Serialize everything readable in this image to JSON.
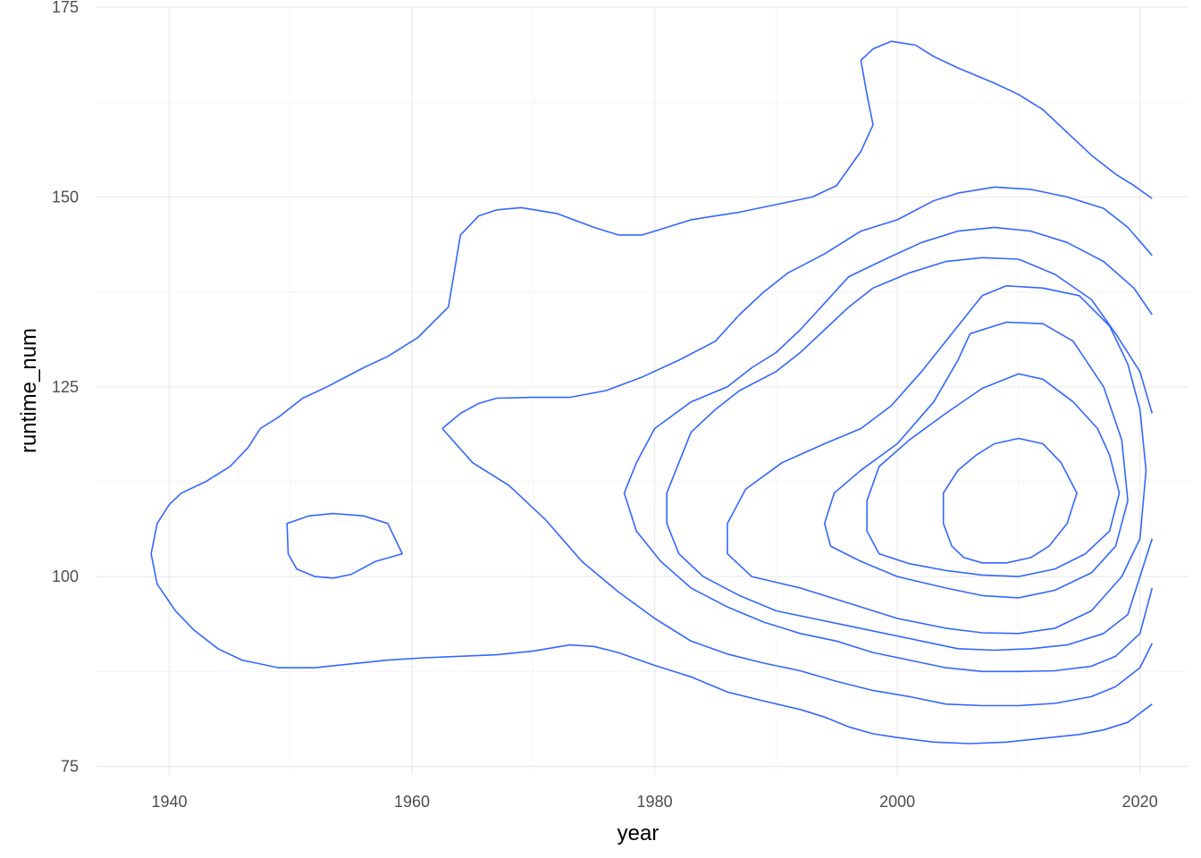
{
  "chart_data": {
    "type": "contour",
    "xlabel": "year",
    "ylabel": "runtime_num",
    "xlim": [
      1934,
      2024
    ],
    "ylim": [
      74,
      175
    ],
    "x_ticks": [
      1940,
      1960,
      1980,
      2000,
      2020
    ],
    "x_tick_labels": [
      "1940",
      "1960",
      "1980",
      "2000",
      "2020"
    ],
    "y_ticks": [
      75,
      100,
      125,
      150,
      175
    ],
    "y_tick_labels": [
      "75",
      "100",
      "125",
      "150",
      "175"
    ],
    "grid": true,
    "legend": "none",
    "line_color": "#3366ff",
    "series": [
      {
        "level": 1,
        "points": [
          [
            1938.5,
            103
          ],
          [
            1939,
            107
          ],
          [
            1940,
            109.5
          ],
          [
            1941,
            111
          ],
          [
            1943,
            112.5
          ],
          [
            1945,
            114.5
          ],
          [
            1946.5,
            117
          ],
          [
            1947.5,
            119.5
          ],
          [
            1949,
            121
          ],
          [
            1951,
            123.5
          ],
          [
            1953,
            125
          ],
          [
            1956,
            127.5
          ],
          [
            1958,
            129
          ],
          [
            1960.5,
            131.5
          ],
          [
            1963,
            135.5
          ],
          [
            1964,
            145
          ],
          [
            1965.5,
            147.5
          ],
          [
            1967,
            148.3
          ],
          [
            1969,
            148.6
          ],
          [
            1972,
            147.8
          ],
          [
            1975,
            146
          ],
          [
            1977,
            145
          ],
          [
            1979,
            145
          ],
          [
            1981,
            146
          ],
          [
            1983,
            147
          ],
          [
            1985,
            147.5
          ],
          [
            1987,
            148
          ],
          [
            1990,
            149
          ],
          [
            1993,
            150
          ],
          [
            1995,
            151.5
          ],
          [
            1997,
            156
          ],
          [
            1998,
            159.5
          ],
          [
            1997.5,
            163.5
          ],
          [
            1997,
            168
          ],
          [
            1998,
            169.5
          ],
          [
            1999.5,
            170.5
          ],
          [
            2001.5,
            170
          ],
          [
            2003,
            168.5
          ],
          [
            2005,
            167
          ],
          [
            2008,
            165
          ],
          [
            2010,
            163.5
          ],
          [
            2012,
            161.5
          ],
          [
            2014,
            158.5
          ],
          [
            2016,
            155.5
          ],
          [
            2018,
            153
          ],
          [
            2019.5,
            151.5
          ],
          [
            2021,
            149.8
          ]
        ]
      },
      {
        "level": 1,
        "points": [
          [
            1938.5,
            103
          ],
          [
            1939,
            99
          ],
          [
            1940.5,
            95.5
          ],
          [
            1942,
            93
          ],
          [
            1944,
            90.5
          ],
          [
            1946,
            89
          ],
          [
            1949,
            88
          ],
          [
            1952,
            88
          ],
          [
            1955,
            88.5
          ],
          [
            1958,
            89
          ],
          [
            1961,
            89.3
          ],
          [
            1964,
            89.5
          ],
          [
            1967,
            89.7
          ],
          [
            1970,
            90.2
          ],
          [
            1973,
            91
          ],
          [
            1975,
            90.8
          ],
          [
            1977,
            90
          ],
          [
            1980,
            88.3
          ],
          [
            1983,
            86.8
          ],
          [
            1986,
            84.8
          ],
          [
            1989,
            83.6
          ],
          [
            1992,
            82.5
          ],
          [
            1994,
            81.5
          ],
          [
            1996,
            80.2
          ],
          [
            1998,
            79.3
          ],
          [
            2000,
            78.8
          ],
          [
            2003,
            78.2
          ],
          [
            2006,
            78
          ],
          [
            2009,
            78.2
          ],
          [
            2012,
            78.7
          ],
          [
            2015,
            79.2
          ],
          [
            2017,
            79.8
          ],
          [
            2019,
            80.8
          ],
          [
            2021,
            83.2
          ]
        ]
      },
      {
        "level": 2,
        "points": [
          [
            1949.8,
            103
          ],
          [
            1949.7,
            107
          ],
          [
            1951.5,
            108
          ],
          [
            1953.5,
            108.3
          ],
          [
            1956,
            108
          ],
          [
            1958,
            107
          ],
          [
            1959.2,
            103
          ],
          [
            1957,
            102
          ],
          [
            1955,
            100.3
          ],
          [
            1953.5,
            99.8
          ],
          [
            1952,
            100
          ],
          [
            1950.5,
            101
          ],
          [
            1949.8,
            103
          ]
        ]
      },
      {
        "level": 2,
        "points": [
          [
            1962.5,
            119.5
          ],
          [
            1964,
            121.5
          ],
          [
            1965.5,
            122.8
          ],
          [
            1967,
            123.5
          ],
          [
            1970,
            123.6
          ],
          [
            1973,
            123.6
          ],
          [
            1976,
            124.5
          ],
          [
            1979,
            126.3
          ],
          [
            1982,
            128.5
          ],
          [
            1985,
            131
          ],
          [
            1987,
            134.5
          ],
          [
            1989,
            137.5
          ],
          [
            1991,
            140
          ],
          [
            1994,
            142.5
          ],
          [
            1997,
            145.5
          ],
          [
            2000,
            147
          ],
          [
            2003,
            149.5
          ],
          [
            2005,
            150.5
          ],
          [
            2008,
            151.3
          ],
          [
            2011,
            151
          ],
          [
            2014,
            150
          ],
          [
            2017,
            148.5
          ],
          [
            2019,
            146
          ],
          [
            2021,
            142.3
          ]
        ]
      },
      {
        "level": 2,
        "points": [
          [
            1962.5,
            119.5
          ],
          [
            1965,
            115
          ],
          [
            1968,
            112
          ],
          [
            1971,
            107.5
          ],
          [
            1974,
            102
          ],
          [
            1977,
            98
          ],
          [
            1980,
            94.5
          ],
          [
            1983,
            91.5
          ],
          [
            1986,
            89.8
          ],
          [
            1989,
            88.6
          ],
          [
            1992,
            87.6
          ],
          [
            1995,
            86.2
          ],
          [
            1998,
            85
          ],
          [
            2001,
            84.2
          ],
          [
            2004,
            83.2
          ],
          [
            2007,
            83
          ],
          [
            2010,
            83
          ],
          [
            2013,
            83.3
          ],
          [
            2016,
            84.2
          ],
          [
            2018,
            85.5
          ],
          [
            2020,
            88
          ],
          [
            2021,
            91.2
          ]
        ]
      },
      {
        "level": 3,
        "points": [
          [
            2021,
            134.5
          ],
          [
            2019.5,
            138
          ],
          [
            2017,
            141.5
          ],
          [
            2014,
            144
          ],
          [
            2011,
            145.5
          ],
          [
            2008,
            146
          ],
          [
            2005,
            145.5
          ],
          [
            2002,
            144
          ],
          [
            1999,
            141.8
          ],
          [
            1996,
            139.5
          ],
          [
            1994,
            136
          ],
          [
            1992,
            132.5
          ],
          [
            1990,
            129.5
          ],
          [
            1988,
            127.5
          ],
          [
            1986,
            125
          ],
          [
            1983,
            123
          ],
          [
            1980,
            119.5
          ],
          [
            1978.5,
            115
          ],
          [
            1977.5,
            111
          ],
          [
            1978.5,
            106
          ],
          [
            1980.5,
            102
          ],
          [
            1983,
            98.5
          ],
          [
            1986,
            96
          ],
          [
            1989,
            94
          ],
          [
            1992,
            92.5
          ],
          [
            1995,
            91.5
          ],
          [
            1998,
            90
          ],
          [
            2001,
            89
          ],
          [
            2004,
            88
          ],
          [
            2007,
            87.5
          ],
          [
            2010,
            87.5
          ],
          [
            2013,
            87.6
          ],
          [
            2016,
            88.2
          ],
          [
            2018,
            89.5
          ],
          [
            2020,
            92.5
          ],
          [
            2021,
            98.5
          ]
        ]
      },
      {
        "level": 4,
        "points": [
          [
            2021,
            121.5
          ],
          [
            2020,
            127
          ],
          [
            2018,
            132
          ],
          [
            2016,
            136.5
          ],
          [
            2013,
            139.8
          ],
          [
            2010,
            141.8
          ],
          [
            2007,
            142
          ],
          [
            2004,
            141.5
          ],
          [
            2001,
            140
          ],
          [
            1998,
            138
          ],
          [
            1996,
            135.5
          ],
          [
            1994,
            132.5
          ],
          [
            1992,
            129.5
          ],
          [
            1990,
            127
          ],
          [
            1987,
            124.5
          ],
          [
            1985,
            122
          ],
          [
            1983,
            119
          ],
          [
            1982,
            115
          ],
          [
            1981,
            111
          ],
          [
            1981,
            107
          ],
          [
            1982,
            103
          ],
          [
            1984,
            100
          ],
          [
            1987,
            97.5
          ],
          [
            1990,
            95.5
          ],
          [
            1993,
            94.5
          ],
          [
            1996,
            93.5
          ],
          [
            1999,
            92.5
          ],
          [
            2002,
            91.5
          ],
          [
            2005,
            90.5
          ],
          [
            2008,
            90.3
          ],
          [
            2011,
            90.5
          ],
          [
            2014,
            91
          ],
          [
            2017,
            92.5
          ],
          [
            2019,
            95
          ],
          [
            2021,
            105
          ]
        ]
      },
      {
        "level": 5,
        "points": [
          [
            2012,
            138
          ],
          [
            2015,
            137
          ],
          [
            2017.5,
            133
          ],
          [
            2019,
            128
          ],
          [
            2020,
            122
          ],
          [
            2020.5,
            114
          ],
          [
            2020,
            105
          ],
          [
            2018.5,
            100
          ],
          [
            2016,
            95.5
          ],
          [
            2013,
            93.2
          ],
          [
            2010,
            92.5
          ],
          [
            2007,
            92.6
          ],
          [
            2004,
            93.2
          ],
          [
            2000,
            94.5
          ],
          [
            1996,
            96.5
          ],
          [
            1992,
            98.5
          ],
          [
            1988,
            100
          ],
          [
            1986,
            103
          ],
          [
            1986,
            107
          ],
          [
            1987.5,
            111.5
          ],
          [
            1990.5,
            115
          ],
          [
            1994,
            117.5
          ],
          [
            1997,
            119.5
          ],
          [
            1999.5,
            122.5
          ],
          [
            2002,
            127
          ],
          [
            2004.5,
            132
          ],
          [
            2007,
            137
          ],
          [
            2009,
            138.3
          ],
          [
            2012,
            138
          ]
        ]
      },
      {
        "level": 6,
        "points": [
          [
            2006,
            132
          ],
          [
            2009,
            133.5
          ],
          [
            2012,
            133.3
          ],
          [
            2014.5,
            131
          ],
          [
            2017,
            125
          ],
          [
            2018.5,
            118
          ],
          [
            2019,
            110
          ],
          [
            2018,
            104
          ],
          [
            2016,
            100.5
          ],
          [
            2013,
            98.2
          ],
          [
            2010,
            97.2
          ],
          [
            2007,
            97.5
          ],
          [
            2004,
            98.5
          ],
          [
            2000,
            100
          ],
          [
            1997,
            102
          ],
          [
            1994.5,
            104
          ],
          [
            1994,
            107
          ],
          [
            1994.8,
            111
          ],
          [
            1997,
            114
          ],
          [
            2000,
            117.5
          ],
          [
            2003,
            123
          ],
          [
            2005,
            128.5
          ],
          [
            2006,
            132
          ]
        ]
      },
      {
        "level": 7,
        "points": [
          [
            2010,
            126.7
          ],
          [
            2012,
            126
          ],
          [
            2014.5,
            123
          ],
          [
            2016.5,
            119.5
          ],
          [
            2017.5,
            116
          ],
          [
            2018.3,
            111
          ],
          [
            2017.5,
            106
          ],
          [
            2015.5,
            103
          ],
          [
            2013,
            101
          ],
          [
            2010,
            100
          ],
          [
            2007,
            100.2
          ],
          [
            2004,
            100.8
          ],
          [
            2001,
            101.7
          ],
          [
            1998.5,
            103
          ],
          [
            1997.5,
            106
          ],
          [
            1997.5,
            110
          ],
          [
            1998.5,
            114.5
          ],
          [
            2001,
            118
          ],
          [
            2004,
            121.5
          ],
          [
            2007,
            124.8
          ],
          [
            2010,
            126.7
          ]
        ]
      },
      {
        "level": 8,
        "points": [
          [
            2008,
            117.5
          ],
          [
            2010,
            118.2
          ],
          [
            2012,
            117.5
          ],
          [
            2013.5,
            115
          ],
          [
            2014.8,
            111
          ],
          [
            2014,
            107
          ],
          [
            2012.5,
            104
          ],
          [
            2011,
            102.5
          ],
          [
            2009,
            101.8
          ],
          [
            2007,
            101.8
          ],
          [
            2005.5,
            102.5
          ],
          [
            2004.5,
            104
          ],
          [
            2003.8,
            107
          ],
          [
            2003.8,
            111
          ],
          [
            2005,
            114
          ],
          [
            2006.5,
            116
          ],
          [
            2008,
            117.5
          ]
        ]
      }
    ]
  }
}
